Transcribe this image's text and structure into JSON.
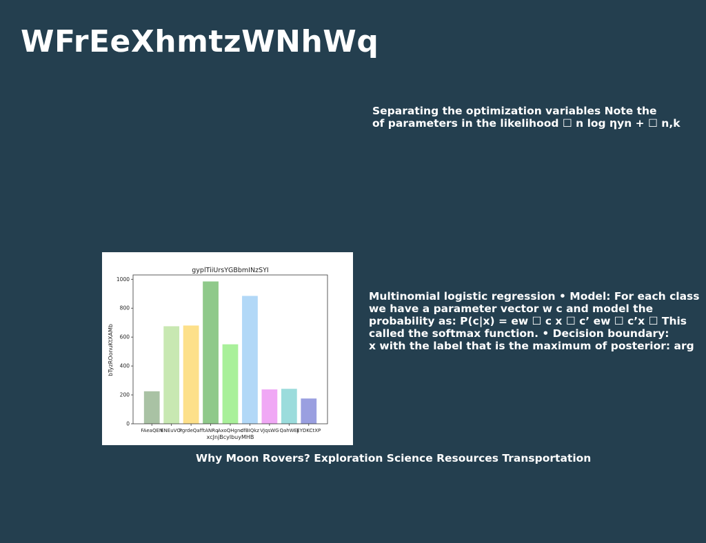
{
  "slide": {
    "title": "WFrEeXhmtzWNhWq",
    "top_text": [
      "Separating the optimization variables Note the",
      "of parameters in the likelihood ☐ n log ηyn + ☐ n,k"
    ],
    "mid_text": [
      "Multinomial logistic regression • Model: For each class",
      "we have a parameter vector w c and model the",
      "probability as: P(c|x) = ew ☐ c x ☐ c’ ew ☐ c’x ☐ This",
      "called the softmax function. • Decision boundary:",
      "x with the label that is the maximum of posterior: arg"
    ],
    "caption": "Why Moon Rovers? Exploration Science Resources Transportation"
  },
  "chart_data": {
    "type": "bar",
    "title": "gyplTiiUrsYGBbmINzSYI",
    "xlabel": "xcJnjBcylbuyMHB",
    "ylabel": "bTyzROonuKtXAMb",
    "categories": [
      "FAeaQEN",
      "ENEuVCr",
      "FgrdeQaff",
      "tANRq",
      "AxoQHgnc",
      "dfBIQkz",
      "VJqsWG",
      "QahWEJ",
      "EYDKCtXP"
    ],
    "values": [
      225,
      675,
      680,
      985,
      550,
      885,
      238,
      242,
      175
    ],
    "ylim": [
      0,
      1030
    ],
    "yticks": [
      0,
      200,
      400,
      600,
      800,
      1000
    ],
    "colors": [
      "#a9c2a4",
      "#c8e8b2",
      "#fde08a",
      "#8fc98a",
      "#a9f09a",
      "#b2d8f7",
      "#f0a8f5",
      "#9bdcdc",
      "#9a9fe0"
    ],
    "grid": false,
    "legend": "none"
  }
}
